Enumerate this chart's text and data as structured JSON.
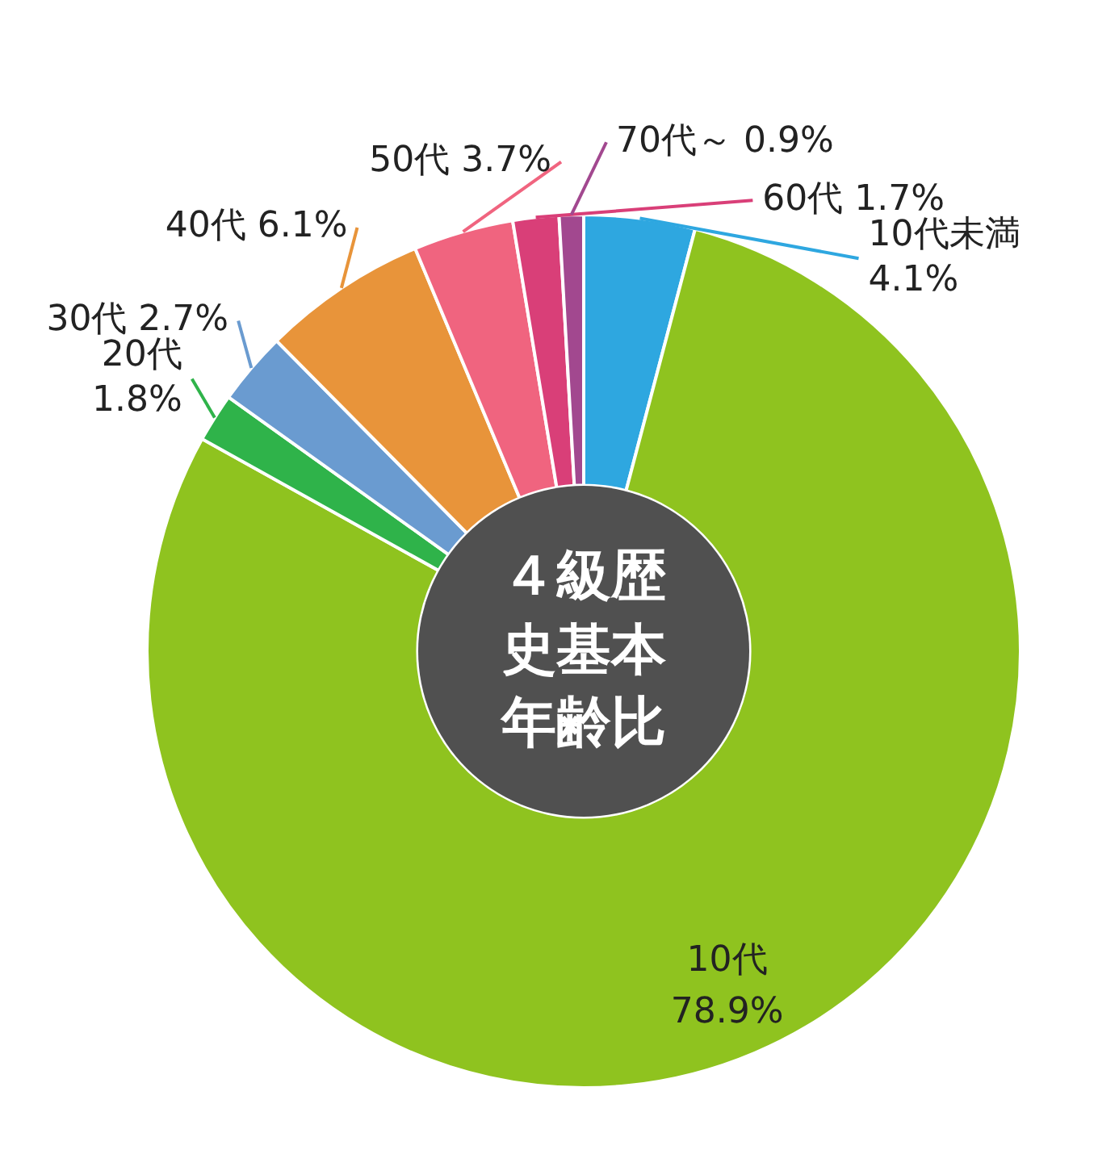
{
  "chart_data": {
    "type": "donut",
    "title": "４級歴史基本年齢比",
    "categories": [
      "10代未満",
      "10代",
      "20代",
      "30代",
      "40代",
      "50代",
      "60代",
      "70代～"
    ],
    "values": [
      4.1,
      78.9,
      1.8,
      2.7,
      6.1,
      3.7,
      1.7,
      0.9
    ],
    "value_labels": [
      "4.1%",
      "78.9%",
      "1.8%",
      "2.7%",
      "6.1%",
      "3.7%",
      "1.7%",
      "0.9%"
    ],
    "colors": [
      "#2ea7e0",
      "#8fc31f",
      "#2fb34a",
      "#6a9bd0",
      "#e8943a",
      "#f0647f",
      "#d93f78",
      "#a2488f"
    ],
    "legend": false
  }
}
